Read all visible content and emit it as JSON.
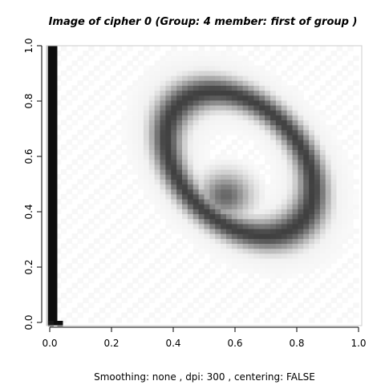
{
  "chart_data": {
    "type": "heatmap",
    "title": "Image of cipher  0 (Group:  4  member:  first of group )",
    "subtitle": "Smoothing: none , dpi: 300 , centering: FALSE",
    "xlim": [
      0,
      1
    ],
    "ylim": [
      0,
      1
    ],
    "x_ticks": [
      0.0,
      0.2,
      0.4,
      0.6,
      0.8,
      1.0
    ],
    "y_ticks": [
      0.0,
      0.2,
      0.4,
      0.6,
      0.8,
      1.0
    ],
    "x_tick_labels": [
      "0.0",
      "0.2",
      "0.4",
      "0.6",
      "0.8",
      "1.0"
    ],
    "y_tick_labels": [
      "0.0",
      "0.2",
      "0.4",
      "0.6",
      "0.8",
      "1.0"
    ],
    "colormap": "grayscale (white = 0, black = 1)",
    "border_column": {
      "x_range": [
        0.005,
        0.035
      ],
      "y_range": [
        0.0,
        1.0
      ],
      "intensity": 0.95
    },
    "border_edge": {
      "x_range": [
        0.0,
        0.008
      ],
      "y_range": [
        0.0,
        1.0
      ],
      "intensity": 0.25
    },
    "bottom_pixels": [
      {
        "x": 0.005,
        "y": 0.0,
        "intensity": 0.9
      },
      {
        "x": 0.035,
        "y": 0.0,
        "intensity": 0.95
      }
    ],
    "stroke": {
      "shape": "ellipse-loop",
      "center": [
        0.615,
        0.575
      ],
      "semi_axes": [
        0.29,
        0.2
      ],
      "rotation_deg": -52,
      "thickness": 0.03,
      "max_intensity": 0.75
    },
    "blob": {
      "center": [
        0.57,
        0.46
      ],
      "radius": 0.055,
      "intensity": 0.6
    }
  }
}
